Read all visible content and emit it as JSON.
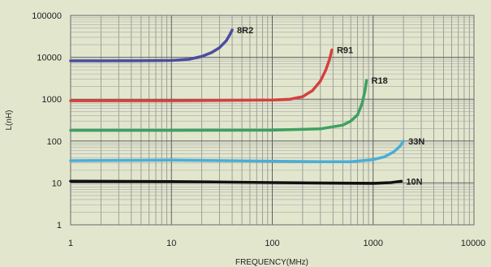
{
  "chart_data": {
    "type": "line",
    "title": "",
    "xlabel": "FREQUENCY(MHz)",
    "ylabel": "L(nH)",
    "xscale": "log",
    "yscale": "log",
    "xlim": [
      1,
      10000
    ],
    "ylim": [
      1,
      100000
    ],
    "grid": true,
    "x_ticks": [
      {
        "value": 1,
        "label": "1"
      },
      {
        "value": 10,
        "label": "10"
      },
      {
        "value": 100,
        "label": "100"
      },
      {
        "value": 1000,
        "label": "1000"
      },
      {
        "value": 10000,
        "label": "10000"
      }
    ],
    "y_ticks": [
      {
        "value": 1,
        "label": "1"
      },
      {
        "value": 10,
        "label": "10"
      },
      {
        "value": 100,
        "label": "100"
      },
      {
        "value": 1000,
        "label": "1000"
      },
      {
        "value": 10000,
        "label": "10000"
      },
      {
        "value": 100000,
        "label": "100000"
      }
    ],
    "series": [
      {
        "name": "8R2",
        "color": "#4b4da0",
        "x": [
          1,
          5,
          10,
          15,
          20,
          25,
          30,
          35,
          38,
          40
        ],
        "y": [
          8200,
          8250,
          8400,
          9000,
          10500,
          13000,
          17000,
          25000,
          35000,
          45000
        ]
      },
      {
        "name": "R91",
        "color": "#d6403f",
        "x": [
          1,
          10,
          100,
          150,
          200,
          250,
          300,
          340,
          370,
          390
        ],
        "y": [
          920,
          920,
          950,
          1000,
          1150,
          1600,
          2700,
          5000,
          9000,
          15000
        ]
      },
      {
        "name": "R18",
        "color": "#3ea061",
        "x": [
          1,
          10,
          100,
          300,
          500,
          600,
          700,
          780,
          830,
          860
        ],
        "y": [
          180,
          180,
          182,
          195,
          240,
          300,
          420,
          800,
          1600,
          2800
        ]
      },
      {
        "name": "33N",
        "color": "#4aaed6",
        "x": [
          1,
          10,
          100,
          300,
          600,
          1000,
          1300,
          1600,
          1850,
          2000
        ],
        "y": [
          34,
          35,
          33,
          32,
          32,
          36,
          42,
          55,
          75,
          100
        ]
      },
      {
        "name": "10N",
        "color": "#111111",
        "x": [
          1,
          10,
          100,
          1000,
          1500,
          1900
        ],
        "y": [
          11,
          10.8,
          10.2,
          9.8,
          10.2,
          11
        ]
      }
    ]
  }
}
